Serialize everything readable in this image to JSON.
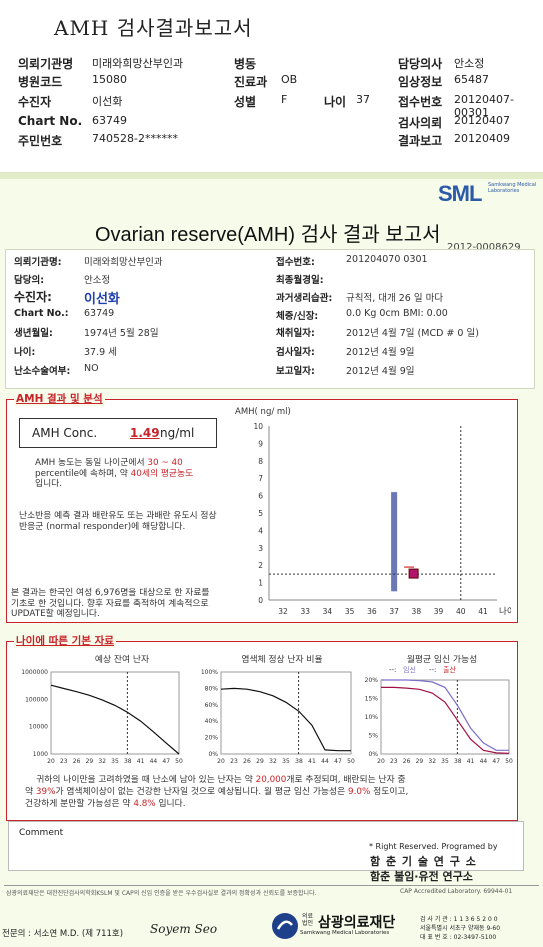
{
  "header": {
    "title": "AMH 검사결과보고서",
    "rows": [
      {
        "l1": "의뢰기관명",
        "v1": "미래와희망산부인과",
        "l2": "병동",
        "v2": "",
        "l3": "담당의사",
        "v3": "안소정"
      },
      {
        "l1": "병원코드",
        "v1": "15080",
        "l2": "진료과",
        "v2": "OB",
        "l3": "임상정보",
        "v3": "65487"
      },
      {
        "l1": "수진자",
        "v1": "이선화",
        "l2": "성별",
        "v2": "F",
        "l2b": "나이",
        "v2b": "37",
        "l3": "접수번호",
        "v3": "20120407-00301"
      },
      {
        "l1": "Chart No.",
        "v1": "63749",
        "l2": "",
        "v2": "",
        "l3": "검사의뢰",
        "v3": "20120407"
      },
      {
        "l1": "주민번호",
        "v1": "740528-2******",
        "l2": "",
        "v2": "",
        "l3": "결과보고",
        "v3": "20120409"
      }
    ]
  },
  "report": {
    "logo": "SML",
    "logo_sub": "Samkwang Medical Laboratories",
    "title": "Ovarian reserve(AMH) 검사 결과 보고서",
    "report_no": "2012-0008629",
    "info_left": [
      {
        "label": "의뢰기관명:",
        "value": "미래와희망산부인과"
      },
      {
        "label": "담당의:",
        "value": "안소정"
      },
      {
        "label": "수진자:",
        "value": "이선화"
      },
      {
        "label": "Chart No.:",
        "value": "63749"
      },
      {
        "label": "생년월일:",
        "value": "1974년 5월 28일"
      },
      {
        "label": "나이:",
        "value": "37.9 세"
      },
      {
        "label": "난소수술여부:",
        "value": "NO"
      }
    ],
    "info_right": [
      {
        "label": "접수번호:",
        "value": "201204070 0301"
      },
      {
        "label": "최종월경일:",
        "value": ""
      },
      {
        "label": "과거생리습관:",
        "value": "규칙적,  대개    26  일 마다"
      },
      {
        "label": "체중/신장:",
        "value": "0.0  Kg        0cm   BMI:      0.00"
      },
      {
        "label": "채취일자:",
        "value": "2012년 4월 7일       (MCD #  0  일)"
      },
      {
        "label": "검사일자:",
        "value": "2012년 4월 9일"
      },
      {
        "label": "보고일자:",
        "value": "2012년 4월 9일"
      }
    ]
  },
  "amh_section": {
    "title": "AMH 결과 및 분석",
    "conc_label": "AMH Conc.",
    "conc_value": "1.49",
    "conc_unit": "ng/ml",
    "desc1_a": "AMH 농도는 동일 나이군에서",
    "desc1_b": "30 ~  40",
    "desc1_c": "percentile에 속하며, 약",
    "desc1_d": "40세의 평균농도",
    "desc1_e": "입니다.",
    "desc2": "난소반응 예측 결과 배란유도 또는 과배란 유도시 정상반응군 (normal responder)에 해당합니다.",
    "desc3": "본 결과는 한국인 여성 6,976명을 대상으로 한 자료를 기초로 한 것입니다. 향후 자료를 축적하여 계속적으로 UPDATE할 예정입니다.",
    "chart_ylabel": "AMH( ng/ ml)",
    "chart_xlabel": "나이"
  },
  "chart_data": [
    {
      "type": "bar",
      "title": "",
      "ylabel": "AMH( ng/ ml)",
      "xlabel": "나이",
      "x_ticks": [
        "32",
        "33",
        "34",
        "35",
        "36",
        "37",
        "38",
        "39",
        "40",
        "41"
      ],
      "y_ticks": [
        "0",
        "1",
        "2",
        "3",
        "4",
        "5",
        "6",
        "7",
        "8",
        "9",
        "10"
      ],
      "ylim": [
        0,
        10
      ],
      "range_bar": {
        "x": 37,
        "low": 0.5,
        "high": 6.2
      },
      "patient_value": 1.49,
      "patient_age": 37.9,
      "mean_age_line": 40
    },
    {
      "type": "line",
      "title": "예상 잔여 난자",
      "x_ticks": [
        "20",
        "23",
        "26",
        "29",
        "32",
        "35",
        "38",
        "41",
        "44",
        "47",
        "50"
      ],
      "y_ticks": [
        "1000000",
        "100000",
        "10000",
        "1000"
      ],
      "scale": "log",
      "x": [
        20,
        23,
        26,
        29,
        32,
        35,
        38,
        41,
        44,
        47,
        50
      ],
      "y": [
        330000,
        250000,
        190000,
        140000,
        95000,
        60000,
        33000,
        16000,
        6500,
        2500,
        1000
      ],
      "marker_age": 37.9
    },
    {
      "type": "line",
      "title": "염색체 정상 난자 비율",
      "x_ticks": [
        "20",
        "23",
        "26",
        "29",
        "32",
        "35",
        "38",
        "41",
        "44",
        "47",
        "50"
      ],
      "y_ticks": [
        "100%",
        "80%",
        "60%",
        "40%",
        "20%",
        "0%"
      ],
      "x": [
        20,
        23,
        26,
        29,
        32,
        35,
        38,
        41,
        44,
        47,
        50
      ],
      "y": [
        79,
        80,
        79,
        76,
        71,
        63,
        52,
        35,
        5,
        4,
        4
      ],
      "marker_age": 37.9
    },
    {
      "type": "line",
      "title": "월평균 임신 가능성",
      "legend": [
        "임신",
        "출산"
      ],
      "x_ticks": [
        "20",
        "23",
        "26",
        "29",
        "32",
        "35",
        "38",
        "41",
        "44",
        "47",
        "50"
      ],
      "y_ticks": [
        "20%",
        "15%",
        "10%",
        "5%",
        "0%"
      ],
      "series": [
        {
          "name": "임신",
          "x": [
            20,
            23,
            26,
            29,
            32,
            35,
            38,
            41,
            44,
            47,
            50
          ],
          "y": [
            20,
            20,
            20,
            19.8,
            19.5,
            18,
            13,
            7,
            3,
            1,
            1
          ]
        },
        {
          "name": "출산",
          "x": [
            20,
            23,
            26,
            29,
            32,
            35,
            38,
            41,
            44,
            47,
            50
          ],
          "y": [
            18,
            18,
            17.8,
            17.5,
            16.5,
            14,
            9,
            4,
            1,
            0.3,
            0.2
          ]
        }
      ],
      "marker_age": 37.9
    }
  ],
  "age_section": {
    "title": "나이에 따른 기본 자료",
    "summary_1a": "귀하의 나이만을 고려하였을 때 난소에 남아 있는 난자는 약",
    "summary_1b": "20,000",
    "summary_1c": "개로 추정되며, 배란되는 난자 중",
    "summary_2a": "약",
    "summary_2b": "39%",
    "summary_2c": "가 염색체이상이 없는 건강한 난자일 것으로 예상됩니다. 월 평균 임신 가능성은",
    "summary_2d": "9.0%",
    "summary_2e": "정도이고,",
    "summary_3a": "건강하게 분만할 가능성은 약",
    "summary_3b": "4.8%",
    "summary_3c": "입니다."
  },
  "comment": {
    "label": "Comment",
    "right_reserved": "* Right Reserved. Programed by",
    "prog1": "함 춘  기 술  연 구 소",
    "prog2": "함춘 불임·유전 연구소"
  },
  "footer": {
    "notice": "삼광의료재단은 대한진단검사의학회KSLM 및 CAP의 신임 인증을 받은 우수검사실로 결과의 정확성과 신뢰도를 보증합니다.",
    "cap": "CAP  Accredited  Laboratory.  69944-01",
    "doctor": "전문의 : 서소연 M.D. (제 711호)",
    "signature": "Soyem Seo",
    "org_prefix": "의료\n법인",
    "org_name": "삼광의료재단",
    "org_sub": "Samkwang Medical Laboratories",
    "reg": "검 사 기 관 : 1 1 3 6 5 2 0 0",
    "addr": "서울특별시 서초구 양재동 9-60",
    "tel": "대 표 번 호 : 02-3497-5100"
  },
  "colors": {
    "accent_red": "#c8232a",
    "bar_blue": "#6a78b8",
    "marker": "#b1146c",
    "logo_blue": "#2b5aa8"
  }
}
